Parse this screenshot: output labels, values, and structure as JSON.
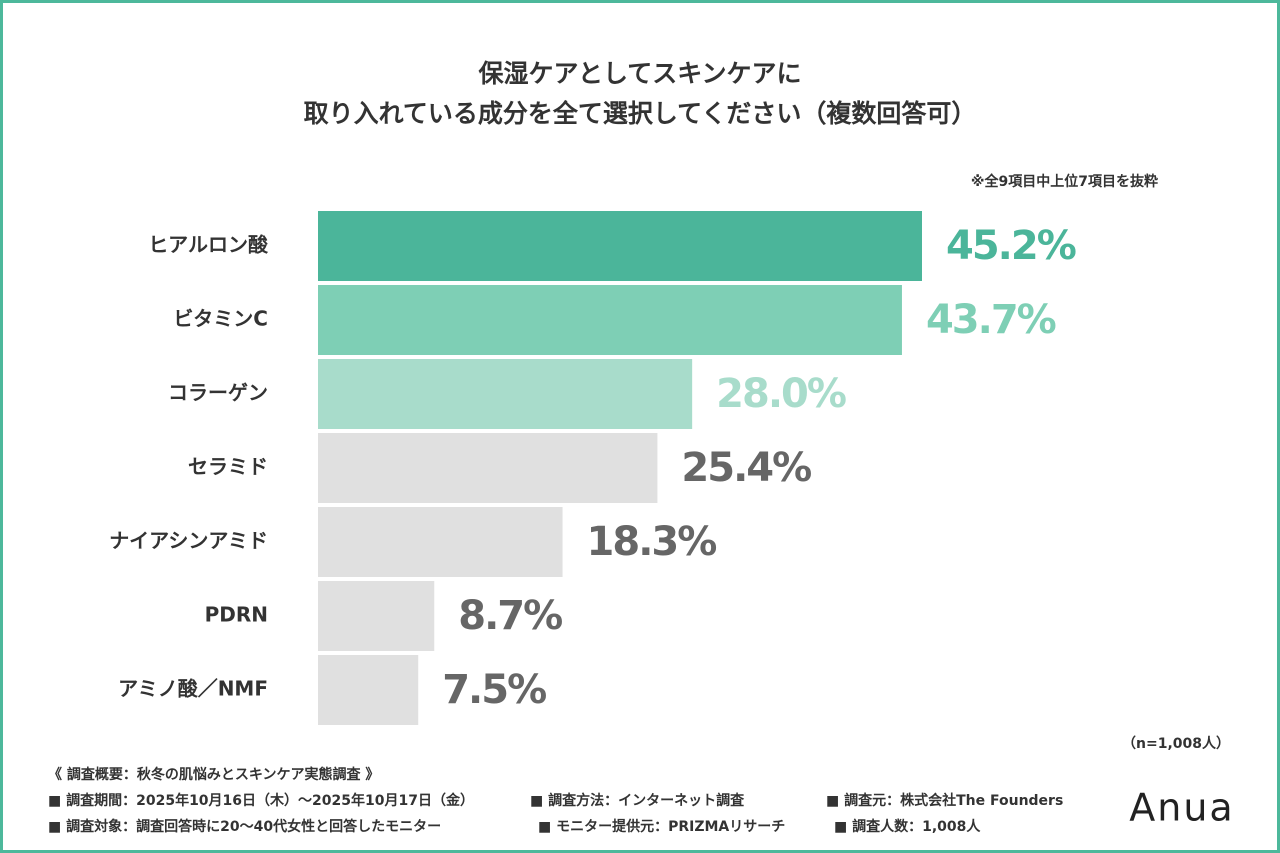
{
  "chart_data": {
    "type": "bar",
    "orientation": "horizontal",
    "title": [
      "保湿ケアとしてスキンケアに",
      "取り入れている成分を全て選択してください（複数回答可）"
    ],
    "note": "※全9項目中上位7項目を抜粋",
    "categories": [
      "ヒアルロン酸",
      "ビタミンC",
      "コラーゲン",
      "セラミド",
      "ナイアシンアミド",
      "PDRN",
      "アミノ酸／NMF"
    ],
    "values": [
      45.2,
      43.7,
      28.0,
      25.4,
      18.3,
      8.7,
      7.5
    ],
    "value_labels": [
      "45.2%",
      "43.7%",
      "28.0%",
      "25.4%",
      "18.3%",
      "8.7%",
      "7.5%"
    ],
    "colors": [
      "#4bb59a",
      "#7ecfb5",
      "#a8dccb",
      "#e0e0e0",
      "#e0e0e0",
      "#e0e0e0",
      "#e0e0e0"
    ],
    "label_colors": [
      "#4bb59a",
      "#7ecfb5",
      "#a8dccb",
      "#666666",
      "#666666",
      "#666666",
      "#666666"
    ],
    "sample": "（n=1,008人）"
  },
  "footer": {
    "summary": "《 調査概要：秋冬の肌悩みとスキンケア実態調査 》",
    "items": [
      [
        "■ 調査期間：2025年10月16日（木）〜2025年10月17日（金）",
        "■ 調査方法：インターネット調査",
        "■ 調査元：株式会社The Founders"
      ],
      [
        "■ 調査対象：調査回答時に20〜40代女性と回答したモニター",
        "■ モニター提供元：PRIZMAリサーチ",
        "■ 調査人数：1,008人"
      ]
    ],
    "logo": "Anua"
  }
}
